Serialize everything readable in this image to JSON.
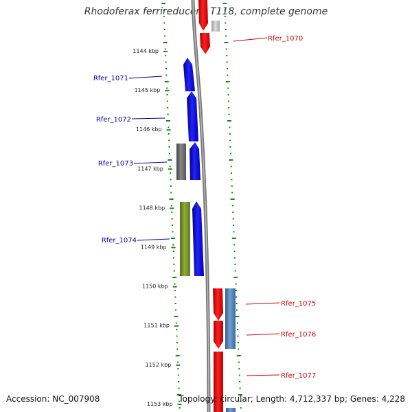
{
  "title": "Rhodoferax ferrireducens T118, complete genome",
  "footer": {
    "accession": "Accession: NC_007908",
    "topology": "Topology: circular; Length: 4,712,337 bp; Genes: 4,228"
  },
  "scale": {
    "unit": "kbp",
    "ticks": [
      {
        "label": "1144 kbp"
      },
      {
        "label": "1145 kbp"
      },
      {
        "label": "1146 kbp"
      },
      {
        "label": "1147 kbp"
      },
      {
        "label": "1148 kbp"
      },
      {
        "label": "1149 kbp"
      },
      {
        "label": "1150 kbp"
      },
      {
        "label": "1151 kbp"
      },
      {
        "label": "1152 kbp"
      },
      {
        "label": "1153 kbp"
      }
    ]
  },
  "gene_labels": [
    {
      "label": "Rfer_1070",
      "strand": "right",
      "color": "#cc0000"
    },
    {
      "label": "Rfer_1071",
      "strand": "left",
      "color": "#000099"
    },
    {
      "label": "Rfer_1072",
      "strand": "left",
      "color": "#000099"
    },
    {
      "label": "Rfer_1073",
      "strand": "left",
      "color": "#000099"
    },
    {
      "label": "Rfer_1074",
      "strand": "left",
      "color": "#000099"
    },
    {
      "label": "Rfer_1075",
      "strand": "right",
      "color": "#cc0000"
    },
    {
      "label": "Rfer_1076",
      "strand": "right",
      "color": "#cc0000"
    },
    {
      "label": "Rfer_1077",
      "strand": "right",
      "color": "#cc0000"
    }
  ],
  "colors": {
    "forward_gene": "#0000ee",
    "reverse_gene": "#ee0000",
    "pseudo_gene": "#666666",
    "rna_gene": "#7a9a2a",
    "other_gene": "#4682b4",
    "dots": "#118811",
    "backbone": "#888888"
  }
}
